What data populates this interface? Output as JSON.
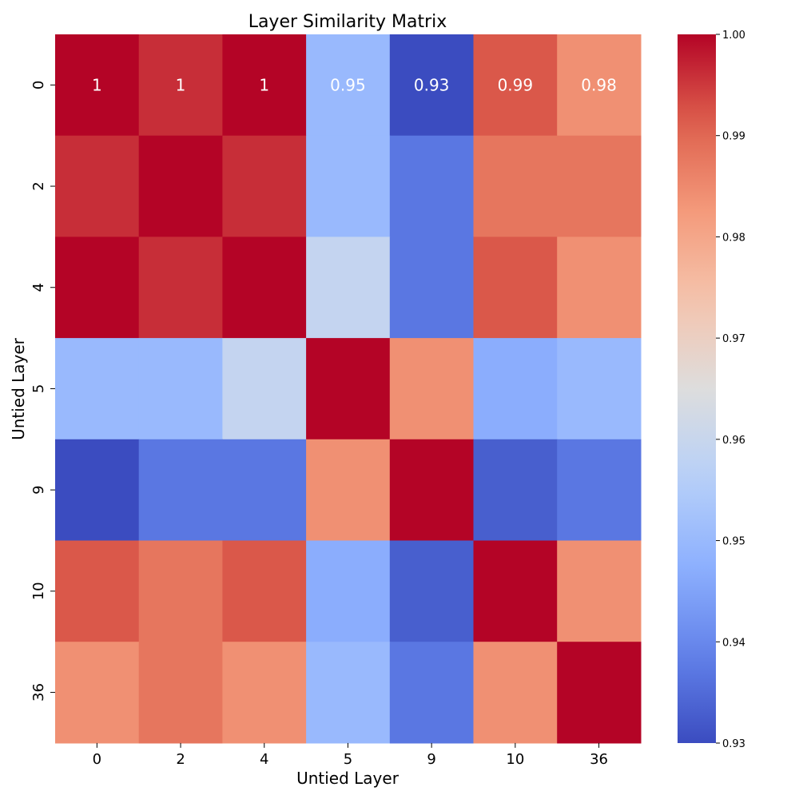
{
  "chart_data": {
    "type": "heatmap",
    "title": "Layer Similarity Matrix",
    "xlabel": "Untied Layer",
    "ylabel": "Untied Layer",
    "x_labels": [
      "0",
      "2",
      "4",
      "5",
      "9",
      "10",
      "36"
    ],
    "y_labels": [
      "0",
      "2",
      "4",
      "5",
      "9",
      "10",
      "36"
    ],
    "matrix": [
      [
        1.0,
        0.996,
        1.0,
        0.95,
        0.93,
        0.992,
        0.984
      ],
      [
        0.996,
        1.0,
        0.996,
        0.95,
        0.937,
        0.988,
        0.988
      ],
      [
        1.0,
        0.996,
        1.0,
        0.959,
        0.937,
        0.992,
        0.984
      ],
      [
        0.95,
        0.95,
        0.959,
        1.0,
        0.984,
        0.947,
        0.95
      ],
      [
        0.93,
        0.937,
        0.937,
        0.984,
        1.0,
        0.933,
        0.937
      ],
      [
        0.992,
        0.988,
        0.992,
        0.947,
        0.933,
        1.0,
        0.984
      ],
      [
        0.984,
        0.988,
        0.984,
        0.95,
        0.937,
        0.984,
        1.0
      ]
    ],
    "annotations_row": 0,
    "annotations": [
      "1",
      "1",
      "1",
      "0.95",
      "0.93",
      "0.99",
      "0.98"
    ],
    "colormap": "coolwarm",
    "vmin": 0.93,
    "vmax": 1.0,
    "colorbar_ticks": [
      "1.00",
      "0.99",
      "0.98",
      "0.97",
      "0.96",
      "0.95",
      "0.94",
      "0.93"
    ]
  }
}
